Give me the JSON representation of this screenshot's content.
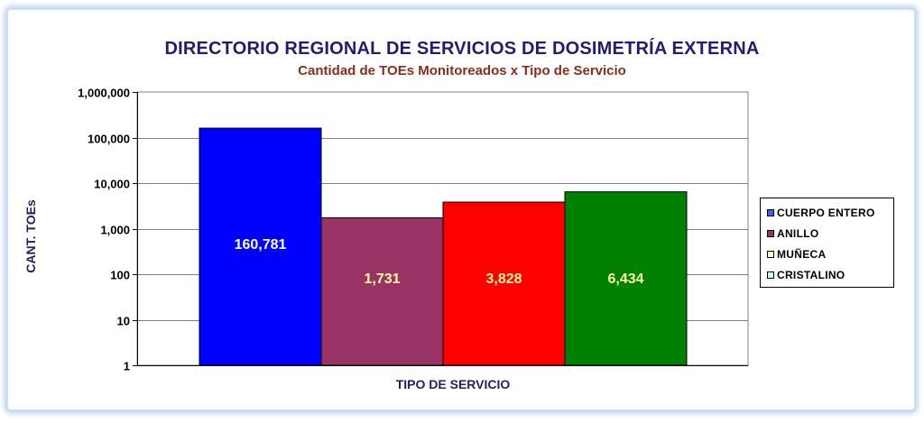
{
  "chart_data": {
    "type": "bar",
    "title": "DIRECTORIO REGIONAL DE SERVICIOS DE DOSIMETRÍA EXTERNA",
    "subtitle": "Cantidad de TOEs Monitoreados x Tipo de Servicio",
    "xlabel": "TIPO DE SERVICIO",
    "ylabel": "CANT. TOEs",
    "yscale": "log",
    "ylim": [
      1,
      1000000
    ],
    "yticks": [
      "1",
      "10",
      "100",
      "1,000",
      "10,000",
      "100,000",
      "1,000,000"
    ],
    "grid": true,
    "legend_position": "right",
    "series": [
      {
        "name": "CUERPO ENTERO",
        "value": 160781,
        "label": "160,781",
        "color": "#0000ff",
        "label_color": "#ffffff"
      },
      {
        "name": "ANILLO",
        "value": 1731,
        "label": "1,731",
        "color": "#993366",
        "label_color": "#ffff99"
      },
      {
        "name": "MUÑECA",
        "value": 3828,
        "label": "3,828",
        "color": "#ff0000",
        "label_color": "#ffff99"
      },
      {
        "name": "CRISTALINO",
        "value": 6434,
        "label": "6,434",
        "color": "#008000",
        "label_color": "#ffff99"
      }
    ],
    "legend": [
      {
        "name": "CUERPO ENTERO",
        "color": "#3366ff"
      },
      {
        "name": "ANILLO",
        "color": "#993366"
      },
      {
        "name": "MUÑECA",
        "color": "#ffffcc"
      },
      {
        "name": "CRISTALINO",
        "color": "#ccffff"
      }
    ]
  }
}
